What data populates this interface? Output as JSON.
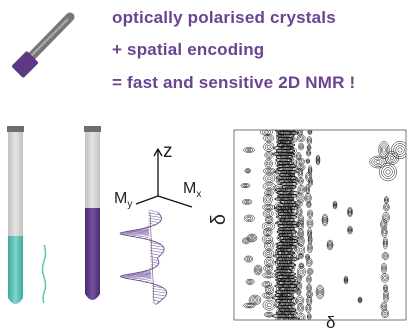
{
  "headlines": {
    "line1": "optically polarised crystals",
    "line2": "+ spatial encoding",
    "line3": "= fast and sensitive 2D NMR !"
  },
  "axes": {
    "z": "z",
    "my_main": "M",
    "my_sub": "y",
    "mx_main": "M",
    "mx_sub": "x"
  },
  "spectrum": {
    "y_label": "δ",
    "x_label": "δ"
  },
  "colors": {
    "headline": "#6b4391",
    "teal": "#5ec2b8",
    "purple": "#5c3a83",
    "tube_glass": "#d0d0d0",
    "tube_cap": "#707070"
  },
  "icons": [
    "syringe-icon",
    "nmr-tube-icon",
    "coordinate-axes-icon",
    "magnetization-helix-icon",
    "2d-nmr-spectrum-icon"
  ]
}
